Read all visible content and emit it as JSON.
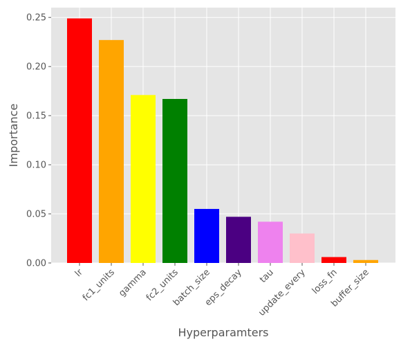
{
  "chart_data": {
    "type": "bar",
    "title": "",
    "xlabel": "Hyperparamters",
    "ylabel": "Importance",
    "ylim": [
      0,
      0.26
    ],
    "yticks": [
      "0.00",
      "0.05",
      "0.10",
      "0.15",
      "0.20",
      "0.25"
    ],
    "grid": true,
    "background": "#e5e5e5",
    "gridColor": "#ffffff",
    "categories": [
      "lr",
      "fc1_units",
      "gamma",
      "fc2_units",
      "batch_size",
      "eps_decay",
      "tau",
      "update_every",
      "loss_fn",
      "buffer_size"
    ],
    "values": [
      0.249,
      0.227,
      0.171,
      0.167,
      0.055,
      0.047,
      0.042,
      0.03,
      0.006,
      0.003
    ],
    "colors": [
      "#ff0000",
      "#ffa500",
      "#ffff00",
      "#008000",
      "#0000ff",
      "#4b0082",
      "#ee82ee",
      "#ffc0cb",
      "#ff0000",
      "#ffa500"
    ]
  }
}
